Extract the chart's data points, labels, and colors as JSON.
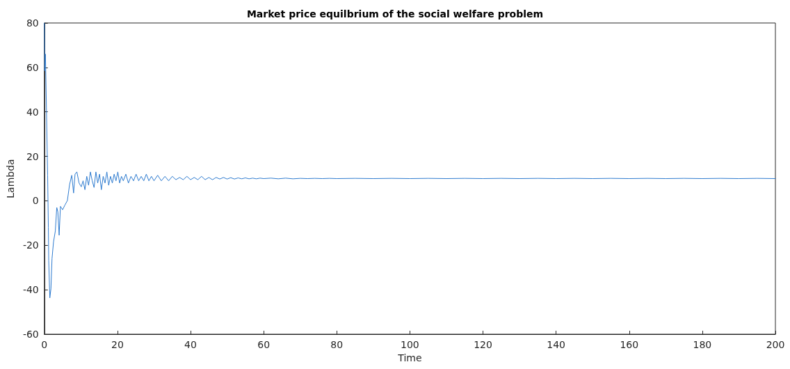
{
  "chart_data": {
    "type": "line",
    "title": "Market price equilbrium of the social welfare problem",
    "xlabel": "Time",
    "ylabel": "Lambda",
    "x": [
      0,
      0.1,
      0.3,
      0.57,
      0.9,
      1.1,
      1.2,
      1.5,
      1.8,
      2.1,
      2.5,
      3.0,
      3.4,
      3.7,
      4.05,
      4.4,
      5,
      5.6,
      6.3,
      6.9,
      7.5,
      8,
      8.4,
      8.9,
      9.5,
      10.1,
      10.6,
      11.1,
      11.6,
      12.1,
      12.6,
      13.1,
      13.6,
      14.1,
      14.6,
      15.1,
      15.6,
      16.1,
      16.6,
      17.1,
      17.6,
      18.1,
      18.6,
      19.1,
      19.6,
      20.1,
      20.6,
      21.1,
      21.6,
      22.3,
      23,
      23.7,
      24.4,
      25.1,
      25.8,
      26.5,
      27.2,
      27.9,
      28.6,
      29.3,
      30,
      31,
      32,
      33,
      34,
      35,
      36,
      37,
      38,
      39,
      40,
      41,
      42,
      43,
      44,
      45,
      46,
      47,
      48,
      49,
      50,
      51,
      52,
      53,
      54,
      55,
      56,
      57,
      58,
      59,
      60,
      62,
      64,
      66,
      68,
      70,
      72,
      74,
      76,
      78,
      80,
      85,
      90,
      95,
      100,
      105,
      110,
      115,
      120,
      125,
      130,
      135,
      140,
      145,
      150,
      155,
      160,
      165,
      170,
      175,
      180,
      185,
      190,
      195,
      200
    ],
    "series": [
      {
        "color": "#2e7bcf",
        "values": [
          80,
          58.5,
          66,
          41.8,
          11.5,
          -12,
          -27,
          -43.7,
          -39.6,
          -26,
          -18.6,
          -13.6,
          -3,
          -5,
          -15.5,
          -2.5,
          -4,
          -2,
          0.1,
          7.3,
          11.5,
          3.5,
          12,
          13,
          8,
          6.3,
          9,
          5,
          11,
          7,
          13,
          9,
          6,
          13,
          8,
          12,
          5,
          11,
          8,
          13,
          7,
          11,
          8,
          12,
          9,
          13,
          8,
          11,
          9,
          12,
          8,
          11,
          9,
          12,
          9,
          11,
          9,
          12,
          9,
          11,
          9,
          11.5,
          9,
          11,
          9,
          11,
          9.5,
          10.5,
          9.5,
          11,
          9.5,
          10.5,
          9.5,
          11,
          9.5,
          10.5,
          9.5,
          10.5,
          9.8,
          10.5,
          9.8,
          10.4,
          9.8,
          10.3,
          9.9,
          10.3,
          9.9,
          10.2,
          9.9,
          10.2,
          10,
          10.2,
          9.9,
          10.2,
          9.9,
          10.1,
          10,
          10.1,
          10,
          10.1,
          10,
          10.1,
          10,
          10.1,
          10,
          10.1,
          10,
          10.1,
          10,
          10.1,
          10,
          10.1,
          10,
          10.1,
          10,
          10.1,
          10,
          10.1,
          10,
          10.1,
          10,
          10.1,
          10,
          10.1,
          10
        ]
      }
    ],
    "xlim": [
      0,
      200
    ],
    "xticks": [
      0,
      20,
      40,
      60,
      80,
      100,
      120,
      140,
      160,
      180,
      200
    ],
    "ylim": [
      -60,
      80
    ],
    "yticks": [
      -60,
      -40,
      -20,
      0,
      20,
      40,
      60,
      80
    ],
    "grid": false,
    "marker": "none",
    "line_style": "solid"
  }
}
